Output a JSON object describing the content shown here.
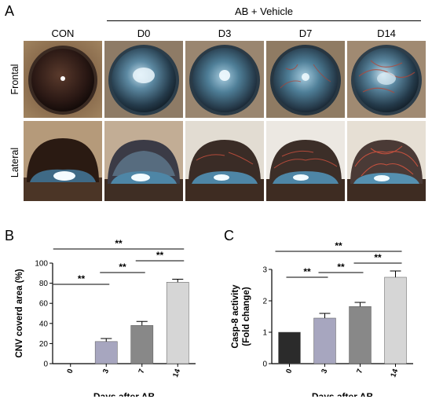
{
  "panel_a": {
    "letter": "A",
    "group_label": "AB + Vehicle",
    "columns": [
      "CON",
      "D0",
      "D3",
      "D7",
      "D14"
    ],
    "rows": [
      "Frontal",
      "Lateral"
    ]
  },
  "panel_b": {
    "letter": "B",
    "significance": [
      "**",
      "**",
      "**",
      "**"
    ]
  },
  "panel_c": {
    "letter": "C",
    "significance": [
      "**",
      "**",
      "**",
      "**"
    ]
  },
  "chart_data": [
    {
      "type": "bar",
      "panel": "B",
      "categories": [
        "0",
        "3",
        "7",
        "14"
      ],
      "values": [
        0,
        22,
        38,
        81
      ],
      "errors": [
        0,
        3,
        4,
        3
      ],
      "colors": [
        "#2b2b2b",
        "#a7a6bf",
        "#888888",
        "#d6d6d6"
      ],
      "xlabel": "Days after AB",
      "ylabel": "CNV coverd area (%)",
      "ylim": [
        0,
        100
      ],
      "yticks": [
        "0",
        "20",
        "40",
        "60",
        "80",
        "100"
      ],
      "comparisons": [
        {
          "from": "0",
          "to": "3",
          "label": "**"
        },
        {
          "from": "3",
          "to": "7",
          "label": "**"
        },
        {
          "from": "7",
          "to": "14",
          "label": "**"
        },
        {
          "from": "0",
          "to": "14",
          "label": "**"
        }
      ]
    },
    {
      "type": "bar",
      "panel": "C",
      "categories": [
        "0",
        "3",
        "7",
        "14"
      ],
      "values": [
        1.0,
        1.45,
        1.82,
        2.75
      ],
      "errors": [
        0,
        0.15,
        0.13,
        0.2
      ],
      "colors": [
        "#2b2b2b",
        "#a7a6bf",
        "#888888",
        "#d6d6d6"
      ],
      "xlabel": "Days after AB",
      "ylabel": "Casp-8 activity\n(Fold change)",
      "ylim": [
        0,
        3
      ],
      "yticks": [
        "0",
        "1",
        "2",
        "3"
      ],
      "comparisons": [
        {
          "from": "0",
          "to": "3",
          "label": "**"
        },
        {
          "from": "3",
          "to": "7",
          "label": "**"
        },
        {
          "from": "7",
          "to": "14",
          "label": "**"
        },
        {
          "from": "0",
          "to": "14",
          "label": "**"
        }
      ]
    }
  ]
}
